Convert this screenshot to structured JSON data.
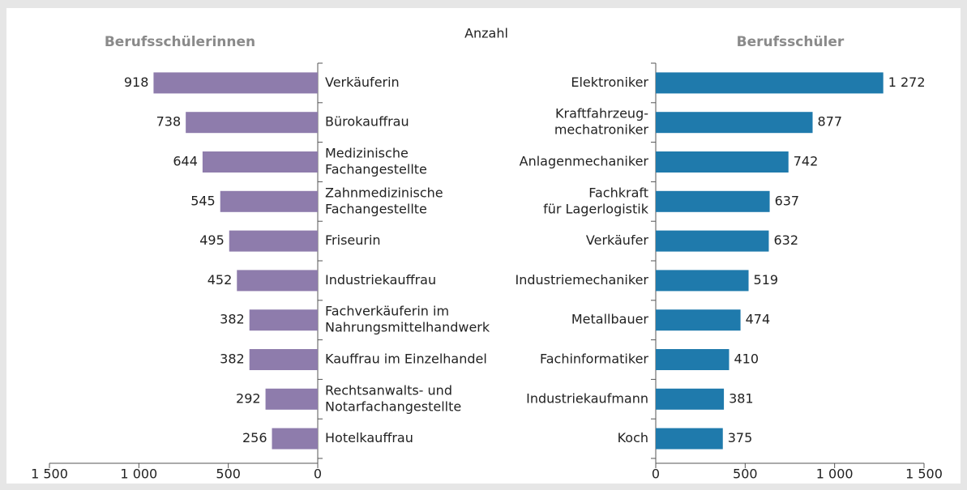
{
  "caption": "Anzahl",
  "chart_data": [
    {
      "type": "barh",
      "title": "Berufsschülerinnen",
      "color": "#8e7cac",
      "categories": [
        [
          "Verkäuferin"
        ],
        [
          "Bürokauffrau"
        ],
        [
          "Medizinische",
          "Fachangestellte"
        ],
        [
          "Zahnmedizinische",
          "Fachangestellte"
        ],
        [
          "Friseurin"
        ],
        [
          "Industriekauffrau"
        ],
        [
          "Fachverkäuferin im",
          "Nahrungsmittelhandwerk"
        ],
        [
          "Kauffrau im Einzelhandel"
        ],
        [
          "Rechtsanwalts- und",
          "Notarfachangestellte"
        ],
        [
          "Hotelkauffrau"
        ]
      ],
      "values": [
        918,
        738,
        644,
        545,
        495,
        452,
        382,
        382,
        292,
        256
      ],
      "xlim": [
        1500,
        0
      ],
      "xticks": [
        {
          "value": 1500,
          "label": "1 500"
        },
        {
          "value": 1000,
          "label": "1 000"
        },
        500,
        0
      ]
    },
    {
      "type": "barh",
      "title": "Berufsschüler",
      "color": "#1f7aac",
      "categories": [
        [
          "Elektroniker"
        ],
        [
          "Kraftfahrzeug-",
          "mechatroniker"
        ],
        [
          "Anlagenmechaniker"
        ],
        [
          "Fachkraft",
          "für Lagerlogistik"
        ],
        [
          "Verkäufer"
        ],
        [
          "Industriemechaniker"
        ],
        [
          "Metallbauer"
        ],
        [
          "Fachinformatiker"
        ],
        [
          "Industriekaufmann"
        ],
        [
          "Koch"
        ]
      ],
      "values": [
        1272,
        877,
        742,
        637,
        632,
        519,
        474,
        410,
        381,
        375
      ],
      "value_labels": [
        "1 272",
        "877",
        "742",
        "637",
        "632",
        "519",
        "474",
        "410",
        "381",
        "375"
      ],
      "xlim": [
        0,
        1500
      ],
      "xticks": [
        0,
        500,
        {
          "value": 1000,
          "label": "1 000"
        },
        {
          "value": 1500,
          "label": "1 500"
        }
      ]
    }
  ]
}
